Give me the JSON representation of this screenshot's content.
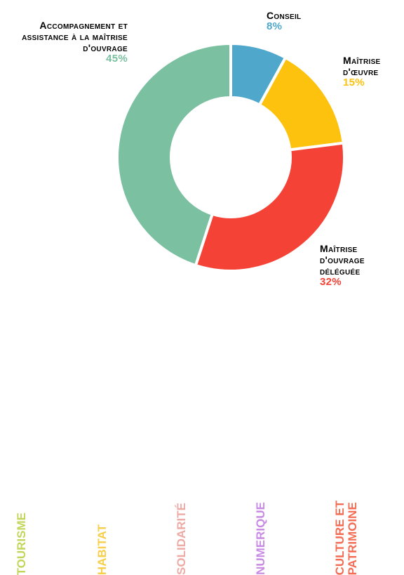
{
  "chart_data": {
    "type": "pie",
    "donut": true,
    "slices": [
      {
        "label": "Conseil",
        "percent_label": "8%",
        "value": 8,
        "color": "#4fa8cc"
      },
      {
        "label": "Maîtrise d'œuvre",
        "percent_label": "15%",
        "value": 15,
        "color": "#fdc20d"
      },
      {
        "label": "Maîtrise d'ouvrage déléguée",
        "percent_label": "32%",
        "value": 32,
        "color": "#f44336"
      },
      {
        "label": "Accompagnement et assistance à la maîtrise d'ouvrage",
        "percent_label": "45%",
        "value": 45,
        "color": "#7ac0a1"
      }
    ]
  },
  "sectors": [
    {
      "label": "TOURISME",
      "color": "#c3d65a"
    },
    {
      "label": "HABITAT",
      "color": "#f7cf4a"
    },
    {
      "label": "SOLIDARITÉ",
      "color": "#eeaaa5"
    },
    {
      "label": "NUMERIQUE",
      "color": "#c98ae6"
    },
    {
      "label": "CULTURE ET\nPATRIMOINE",
      "color": "#f36c54"
    }
  ]
}
